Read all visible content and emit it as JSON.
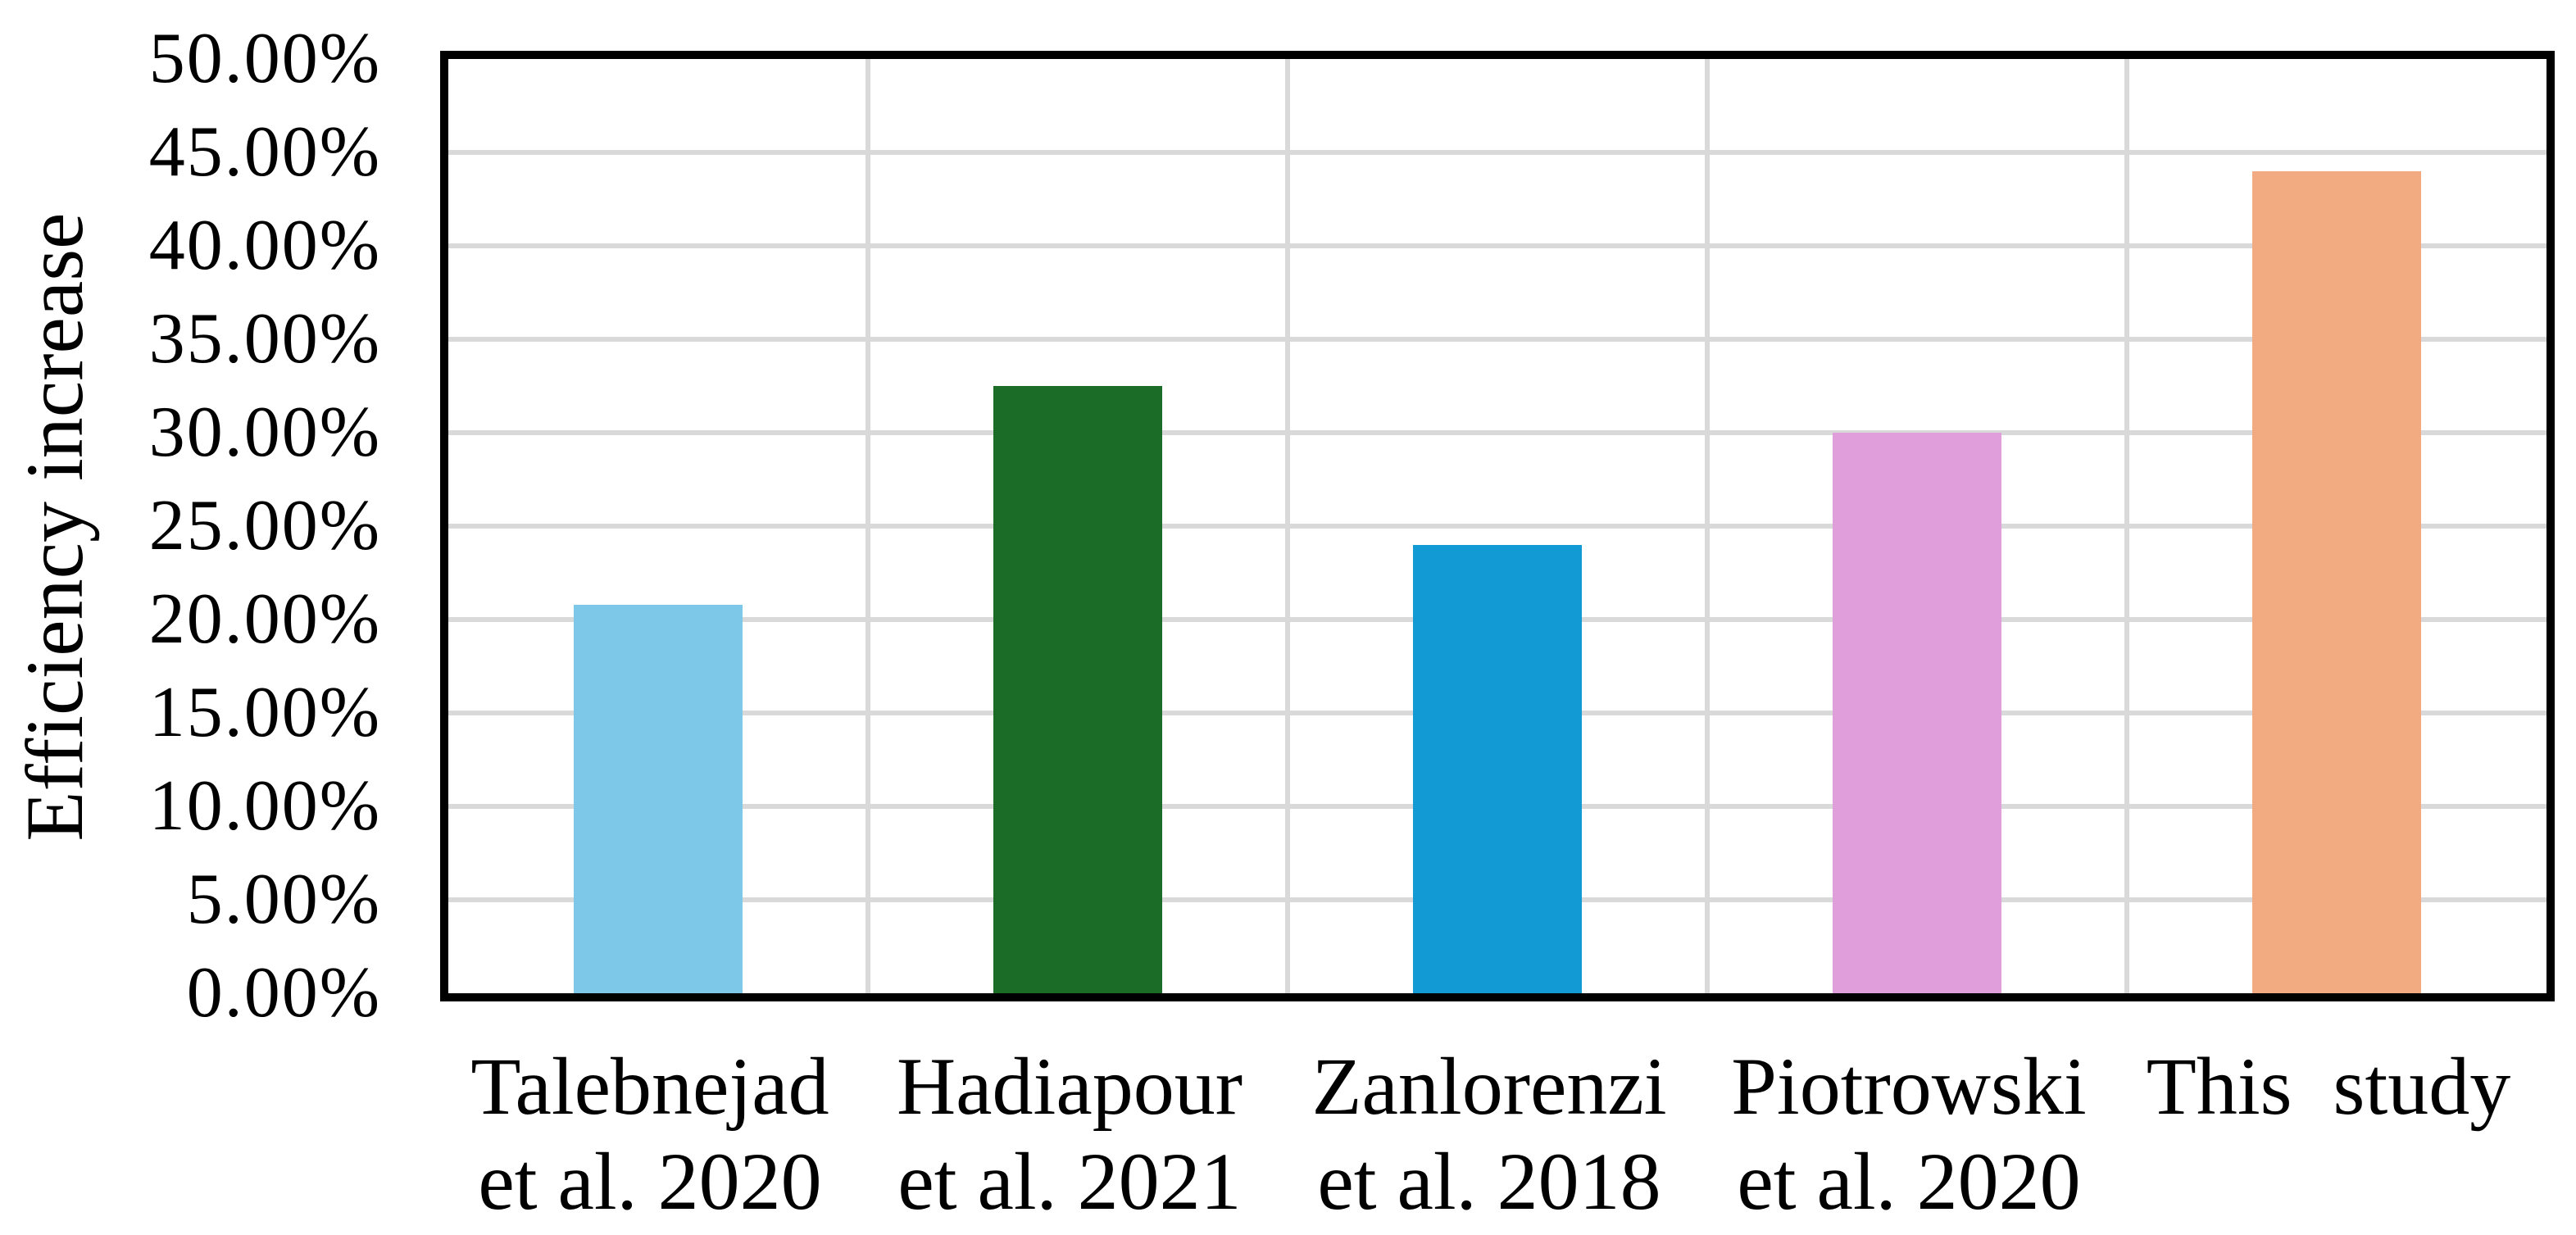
{
  "chart_data": {
    "type": "bar",
    "title": "",
    "ylabel": "Efficiency increase",
    "xlabel": "",
    "ylim_percent": [
      0,
      50
    ],
    "ytick_step_percent": 5,
    "ytick_labels": [
      "0.00%",
      "5.00%",
      "10.00%",
      "15.00%",
      "20.00%",
      "25.00%",
      "30.00%",
      "35.00%",
      "40.00%",
      "45.00%",
      "50.00%"
    ],
    "categories": [
      "Talebnejad et al. 2020",
      "Hadiapour et al. 2021",
      "Zanlorenzi et al. 2018",
      "Piotrowski et al. 2020",
      "This  study"
    ],
    "category_label_lines": [
      [
        "Talebnejad",
        "et al. 2020"
      ],
      [
        "Hadiapour",
        "et al. 2021"
      ],
      [
        "Zanlorenzi",
        "et al. 2018"
      ],
      [
        "Piotrowski",
        "et al. 2020"
      ],
      [
        "This  study"
      ]
    ],
    "values_percent": [
      20.8,
      32.5,
      24.0,
      30.0,
      44.0
    ],
    "bar_colors": [
      "#7DC8E8",
      "#1A6C26",
      "#119AD4",
      "#E09EDA",
      "#F2AA80"
    ],
    "grid": true,
    "gridline_color": "#D9D9D9",
    "axis_frame_color": "#000000",
    "background_color": "#FFFFFF",
    "legend": "none"
  }
}
